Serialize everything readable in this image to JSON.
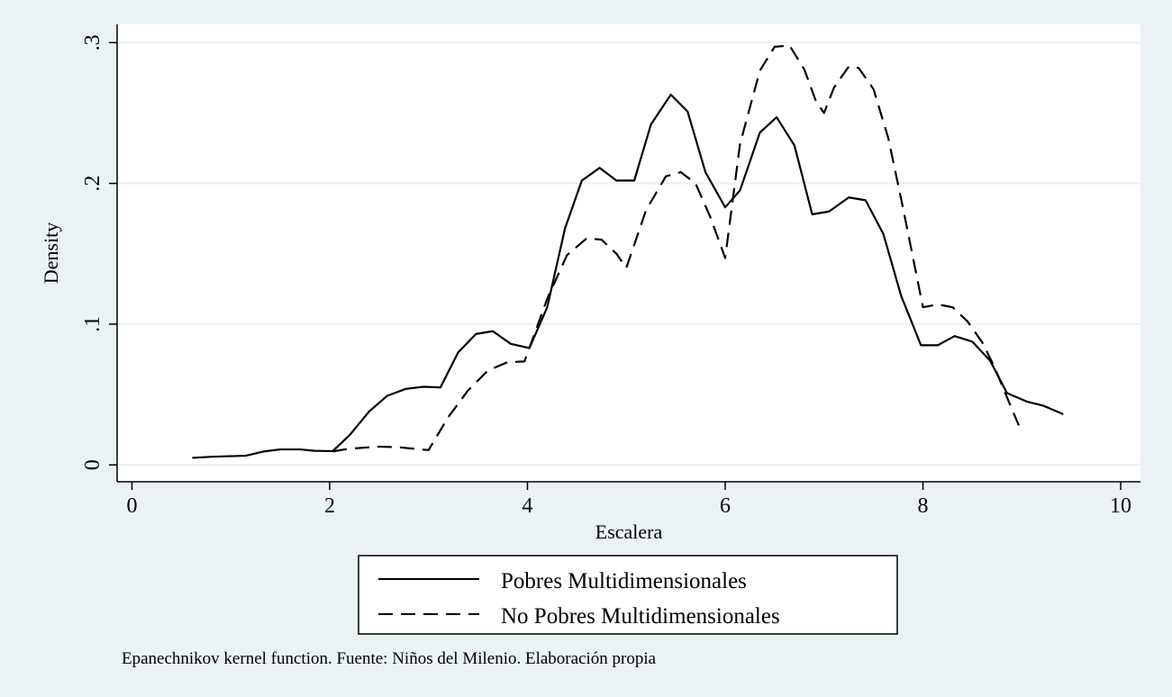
{
  "chart_data": {
    "type": "line",
    "xlabel": "Escalera",
    "ylabel": "Density",
    "xlim": [
      -0.15,
      10.2
    ],
    "ylim": [
      -0.012,
      0.313
    ],
    "xticks": [
      0,
      2,
      4,
      6,
      8,
      10
    ],
    "xtick_labels": [
      "0",
      "2",
      "4",
      "6",
      "8",
      "10"
    ],
    "yticks": [
      0,
      0.1,
      0.2,
      0.3
    ],
    "ytick_labels": [
      "0",
      ".1",
      ".2",
      ".3"
    ],
    "grid": "horizontal",
    "legend_position": "bottom",
    "colors": {
      "outer_background": "#eaf2f3",
      "plot_background": "#ffffff",
      "grid": "#eaf2f3",
      "line": "#000000"
    },
    "series": [
      {
        "name": "Pobres Multidimensionales",
        "style": "solid",
        "x": [
          0.61,
          0.81,
          1.0,
          1.15,
          1.33,
          1.5,
          1.7,
          1.85,
          2.03,
          2.2,
          2.4,
          2.58,
          2.77,
          2.95,
          3.12,
          3.3,
          3.48,
          3.65,
          3.83,
          4.02,
          4.2,
          4.38,
          4.55,
          4.73,
          4.9,
          5.08,
          5.25,
          5.45,
          5.62,
          5.8,
          6.0,
          6.15,
          6.35,
          6.52,
          6.7,
          6.88,
          7.05,
          7.25,
          7.42,
          7.6,
          7.78,
          7.98,
          8.15,
          8.32,
          8.5,
          8.68,
          8.85,
          9.05,
          9.22,
          9.42
        ],
        "y": [
          0.005,
          0.0058,
          0.0062,
          0.0065,
          0.0095,
          0.011,
          0.011,
          0.01,
          0.0098,
          0.021,
          0.038,
          0.049,
          0.054,
          0.0555,
          0.055,
          0.08,
          0.093,
          0.095,
          0.086,
          0.083,
          0.112,
          0.168,
          0.202,
          0.211,
          0.202,
          0.202,
          0.242,
          0.263,
          0.251,
          0.208,
          0.183,
          0.195,
          0.236,
          0.247,
          0.227,
          0.178,
          0.18,
          0.19,
          0.188,
          0.164,
          0.12,
          0.085,
          0.085,
          0.0915,
          0.0875,
          0.074,
          0.051,
          0.045,
          0.042,
          0.036
        ]
      },
      {
        "name": "No Pobres Multidimensionales",
        "style": "dashed",
        "x": [
          2.03,
          2.15,
          2.3,
          2.5,
          2.7,
          2.85,
          3.0,
          3.2,
          3.4,
          3.6,
          3.8,
          3.97,
          4.2,
          4.4,
          4.6,
          4.75,
          4.9,
          5.0,
          5.2,
          5.4,
          5.55,
          5.7,
          5.85,
          6.0,
          6.15,
          6.35,
          6.5,
          6.65,
          6.8,
          6.92,
          7.0,
          7.1,
          7.25,
          7.35,
          7.5,
          7.65,
          7.8,
          7.92,
          8.0,
          8.15,
          8.3,
          8.45,
          8.6,
          8.72,
          8.85,
          8.97
        ],
        "y": [
          0.0095,
          0.011,
          0.012,
          0.013,
          0.0125,
          0.0115,
          0.0105,
          0.034,
          0.053,
          0.067,
          0.073,
          0.0735,
          0.118,
          0.149,
          0.161,
          0.16,
          0.15,
          0.14,
          0.181,
          0.205,
          0.208,
          0.2,
          0.176,
          0.147,
          0.228,
          0.28,
          0.297,
          0.298,
          0.281,
          0.258,
          0.25,
          0.268,
          0.283,
          0.282,
          0.267,
          0.232,
          0.182,
          0.14,
          0.112,
          0.114,
          0.112,
          0.102,
          0.087,
          0.07,
          0.048,
          0.028
        ]
      }
    ],
    "note": "Epanechnikov kernel function. Fuente: Niños del Milenio. Elaboración propia"
  }
}
